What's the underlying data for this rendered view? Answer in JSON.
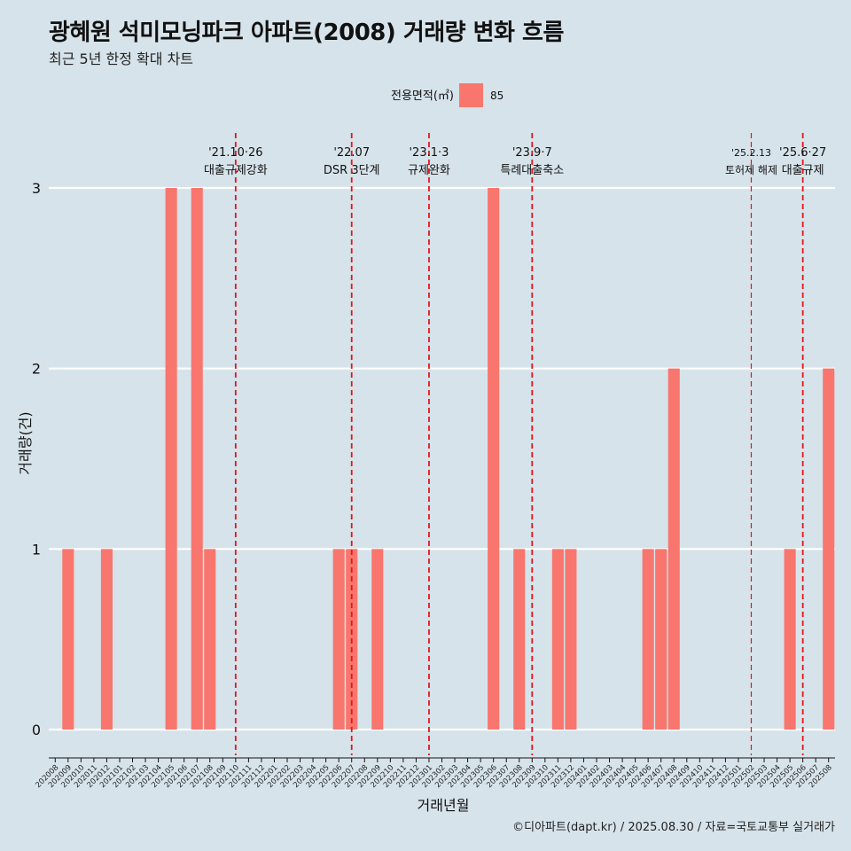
{
  "title": "광혜원 석미모닝파크 아파트(2008) 거래량 변화 흐름",
  "subtitle": "최근 5년 한정 확대 차트",
  "caption": "©디아파트(dapt.kr) / 2025.08.30 / 자료=국토교통부 실거래가",
  "chart_data": {
    "type": "bar",
    "xlabel": "거래년월",
    "ylabel": "거래량(건)",
    "ylim": [
      0,
      3
    ],
    "yticks": [
      0,
      1,
      2,
      3
    ],
    "legend": {
      "title": "전용면적(㎡)",
      "position": "top",
      "entries": [
        {
          "label": "85",
          "color": "#f8766d"
        }
      ]
    },
    "categories": [
      "202008",
      "202009",
      "202010",
      "202011",
      "202012",
      "202101",
      "202102",
      "202103",
      "202104",
      "202105",
      "202106",
      "202107",
      "202108",
      "202109",
      "202110",
      "202111",
      "202112",
      "202201",
      "202202",
      "202203",
      "202204",
      "202205",
      "202206",
      "202207",
      "202208",
      "202209",
      "202210",
      "202211",
      "202212",
      "202301",
      "202302",
      "202303",
      "202304",
      "202305",
      "202306",
      "202307",
      "202308",
      "202309",
      "202310",
      "202311",
      "202312",
      "202401",
      "202402",
      "202403",
      "202404",
      "202405",
      "202406",
      "202407",
      "202408",
      "202409",
      "202410",
      "202411",
      "202412",
      "202501",
      "202502",
      "202503",
      "202504",
      "202505",
      "202506",
      "202507",
      "202508"
    ],
    "series": [
      {
        "name": "85",
        "color": "#f8766d",
        "values": [
          0,
          1,
          0,
          0,
          1,
          0,
          0,
          0,
          0,
          3,
          0,
          3,
          1,
          0,
          0,
          0,
          0,
          0,
          0,
          0,
          0,
          0,
          1,
          1,
          0,
          1,
          0,
          0,
          0,
          0,
          0,
          0,
          0,
          0,
          3,
          0,
          1,
          0,
          0,
          1,
          1,
          0,
          0,
          0,
          0,
          0,
          1,
          1,
          2,
          0,
          0,
          0,
          0,
          0,
          0,
          0,
          0,
          1,
          0,
          0,
          2
        ]
      }
    ],
    "annotations": [
      {
        "x": "202110",
        "date": "'21.10·26",
        "label": "대출규제강화",
        "style": "bold"
      },
      {
        "x": "202207",
        "date": "'22.07",
        "label": "DSR 3단계",
        "style": "bold"
      },
      {
        "x": "202301",
        "date": "'23.1·3",
        "label": "규제완화",
        "style": "bold"
      },
      {
        "x": "202309",
        "date": "'23.9·7",
        "label": "특례대출축소",
        "style": "bold"
      },
      {
        "x": "202502",
        "date": "'25.2.13",
        "label": "토허제 해제",
        "style": "thin"
      },
      {
        "x": "202506",
        "date": "'25.6·27",
        "label": "대출규제",
        "style": "bold"
      }
    ]
  }
}
